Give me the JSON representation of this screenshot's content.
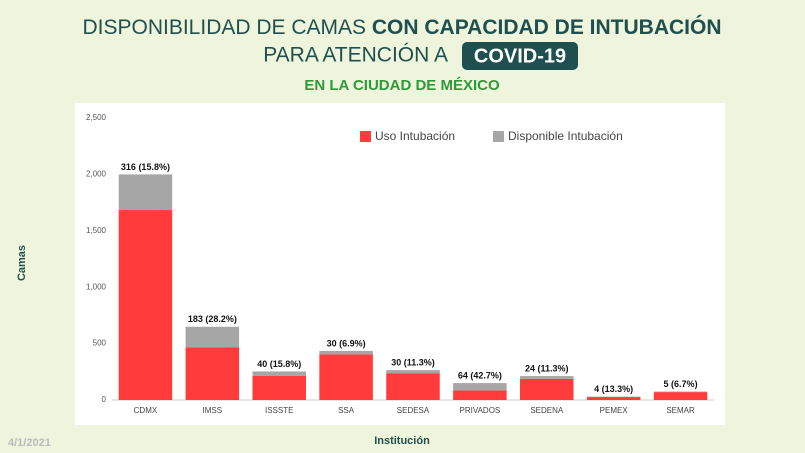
{
  "chart_data": {
    "type": "bar",
    "stacked": true,
    "title": "DISPONIBILIDAD DE CAMAS",
    "title_bold": "CON CAPACIDAD DE INTUBACIÓN",
    "title_line2": "PARA ATENCIÓN A",
    "title_highlight": "COVID-19",
    "subtitle": "EN LA CIUDAD DE MÉXICO",
    "date": "4/1/2021",
    "xlabel": "Institución",
    "ylabel": "Camas",
    "categories": [
      "CDMX",
      "IMSS",
      "ISSSTE",
      "SSA",
      "SEDESA",
      "PRIVADOS",
      "SEDENA",
      "PEMEX",
      "SEMAR"
    ],
    "series": [
      {
        "name": "Uso Intubación",
        "color": "#ff3b3b",
        "values": [
          1684,
          466,
          213,
          405,
          235,
          86,
          188,
          26,
          70
        ]
      },
      {
        "name": "Disponible Intubación",
        "color": "#a6a6a6",
        "values": [
          316,
          183,
          40,
          30,
          30,
          64,
          24,
          4,
          5
        ],
        "value_labels": [
          "316 (15.8%)",
          "183 (28.2%)",
          "40 (15.8%)",
          "30 (6.9%)",
          "30 (11.3%)",
          "64 (42.7%)",
          "24 (11.3%)",
          "4 (13.3%)",
          "5 (6.7%)"
        ]
      }
    ],
    "ylim": [
      0,
      2500
    ],
    "yticks": [
      0,
      500,
      {
        "value": 1000,
        "label": "1,000"
      },
      {
        "value": 1500,
        "label": "1,500"
      },
      {
        "value": 2000,
        "label": "2,000"
      },
      {
        "value": 2500,
        "label": "2,500"
      }
    ],
    "grid": false,
    "legend": "top"
  }
}
